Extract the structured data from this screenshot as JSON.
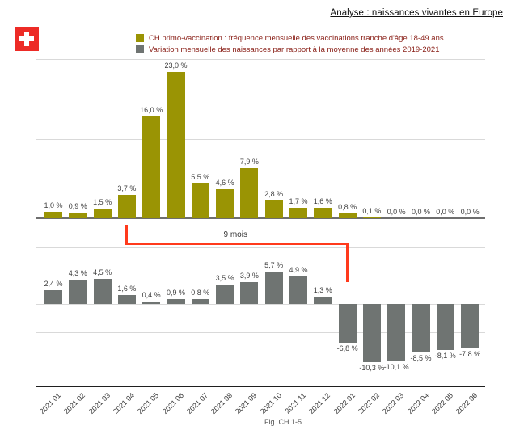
{
  "page": {
    "title": "Analyse : naissances vivantes en Europe",
    "caption": "Fig. CH 1-5"
  },
  "flag": {
    "name": "swiss-flag",
    "background": "#ed2b26",
    "cross": "#ffffff"
  },
  "legend": {
    "items": [
      {
        "label": "CH primo-vaccination : fréquence mensuelle des vaccinations tranche d'âge 18-49 ans",
        "color": "#9a9404"
      },
      {
        "label": "Variation mensuelle des naissances par rapport à la moyenne des années 2019-2021",
        "color": "#6f7472"
      }
    ]
  },
  "chart_data": {
    "type": "bar",
    "grid": true,
    "legend_position": "top",
    "categories": [
      "2021 01",
      "2021 02",
      "2021 03",
      "2021 04",
      "2021 05",
      "2021 06",
      "2021 07",
      "2021 08",
      "2021 09",
      "2021 10",
      "2021 11",
      "2021 12",
      "2022 01",
      "2022 02",
      "2022 03",
      "2022 04",
      "2022 05",
      "2022 06"
    ],
    "panels": [
      {
        "name": "vaccination-panel",
        "series_name": "CH primo-vaccination : fréquence mensuelle des vaccinations tranche d'âge 18-49 ans",
        "color": "#9a9404",
        "ylim": [
          0,
          25
        ],
        "values": [
          1.0,
          0.9,
          1.5,
          3.7,
          16.0,
          23.0,
          5.5,
          4.6,
          7.9,
          2.8,
          1.7,
          1.6,
          0.8,
          0.1,
          0.0,
          0.0,
          0.0,
          0.0
        ],
        "labels": [
          "1,0 %",
          "0,9 %",
          "1,5 %",
          "3,7 %",
          "16,0 %",
          "23,0 %",
          "5,5 %",
          "4,6 %",
          "7,9 %",
          "2,8 %",
          "1,7 %",
          "1,6 %",
          "0,8 %",
          "0,1 %",
          "0,0 %",
          "0,0 %",
          "0,0 %",
          "0,0 %"
        ]
      },
      {
        "name": "births-panel",
        "series_name": "Variation mensuelle des naissances par rapport à la moyenne des années 2019-2021",
        "color": "#6f7472",
        "ylim": [
          -12.5,
          10
        ],
        "gridline_values": [
          10,
          5,
          0,
          -5,
          -10
        ],
        "values": [
          2.4,
          4.3,
          4.5,
          1.6,
          0.4,
          0.9,
          0.8,
          3.5,
          3.9,
          5.7,
          4.9,
          1.3,
          -6.8,
          -10.3,
          -10.1,
          -8.5,
          -8.1,
          -7.8
        ],
        "labels": [
          "2,4 %",
          "4,3 %",
          "4,5 %",
          "1,6 %",
          "0,4 %",
          "0,9 %",
          "0,8 %",
          "3,5 %",
          "3,9 %",
          "5,7 %",
          "4,9 %",
          "1,3 %",
          "-6,8 %",
          "-10,3 %",
          "-10,1 %",
          "-8,5 %",
          "-8,1 %",
          "-7,8 %"
        ]
      }
    ],
    "annotation": {
      "label": "9 mois",
      "from_category": "2021 04",
      "to_category": "2022 01",
      "color": "#ff3a1c"
    }
  }
}
